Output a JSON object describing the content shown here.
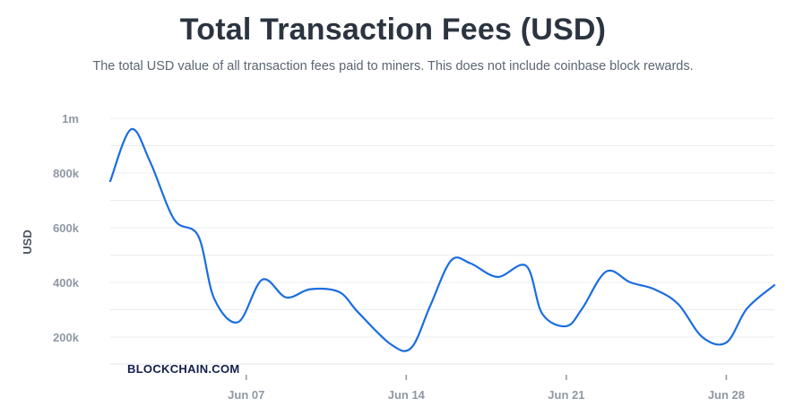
{
  "header": {
    "title": "Total Transaction Fees (USD)",
    "subtitle": "The total USD value of all transaction fees paid to miners. This does not include coinbase block rewards."
  },
  "watermark": "BLOCKCHAIN.COM",
  "colors": {
    "line": "#1a6de0",
    "grid": "#e9ecf1",
    "title": "#2c3440"
  },
  "chart_data": {
    "type": "line",
    "title": "Total Transaction Fees (USD)",
    "subtitle": "The total USD value of all transaction fees paid to miners. This does not include coinbase block rewards.",
    "ylabel": "USD",
    "xlabel": "",
    "ylim": [
      100000,
      1000000
    ],
    "xlim": [
      0.5,
      42
    ],
    "grid": true,
    "y_ticks": [
      {
        "value": 1000000,
        "label": "1m"
      },
      {
        "value": 800000,
        "label": "800k"
      },
      {
        "value": 600000,
        "label": "600k"
      },
      {
        "value": 400000,
        "label": "400k"
      },
      {
        "value": 200000,
        "label": "200k"
      }
    ],
    "x_ticks": [
      {
        "value": 9,
        "label": "Jun 07"
      },
      {
        "value": 19,
        "label": "Jun 14"
      },
      {
        "value": 29,
        "label": "Jun 21"
      },
      {
        "value": 39,
        "label": "Jun 28"
      }
    ],
    "series": [
      {
        "points": [
          [
            0.5,
            770000
          ],
          [
            1.8,
            960000
          ],
          [
            3,
            840000
          ],
          [
            4.5,
            630000
          ],
          [
            6,
            570000
          ],
          [
            7,
            340000
          ],
          [
            8.5,
            255000
          ],
          [
            10,
            410000
          ],
          [
            11.5,
            345000
          ],
          [
            13,
            375000
          ],
          [
            14.8,
            365000
          ],
          [
            16,
            290000
          ],
          [
            18,
            175000
          ],
          [
            19.3,
            160000
          ],
          [
            20.5,
            315000
          ],
          [
            21.8,
            480000
          ],
          [
            23,
            470000
          ],
          [
            24.7,
            420000
          ],
          [
            26.5,
            460000
          ],
          [
            27.5,
            285000
          ],
          [
            29,
            240000
          ],
          [
            30,
            305000
          ],
          [
            31.5,
            440000
          ],
          [
            33,
            400000
          ],
          [
            34.5,
            375000
          ],
          [
            36,
            320000
          ],
          [
            37.5,
            200000
          ],
          [
            39,
            180000
          ],
          [
            40.3,
            305000
          ],
          [
            42,
            390000
          ]
        ]
      }
    ]
  }
}
